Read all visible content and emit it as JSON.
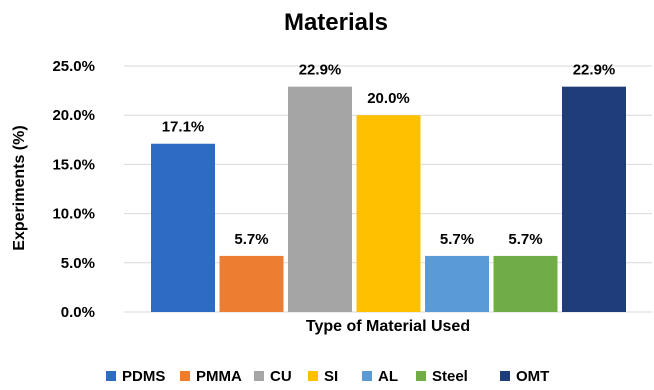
{
  "chart_data": {
    "type": "bar",
    "title": "Materials",
    "xlabel": "Type of Material Used",
    "ylabel": "Experiments (%)",
    "ylim": [
      0,
      25
    ],
    "yticks": [
      "0.0%",
      "5.0%",
      "10.0%",
      "15.0%",
      "20.0%",
      "25.0%"
    ],
    "grid": true,
    "legend_position": "bottom",
    "series": [
      {
        "name": "PDMS",
        "value": 17.1,
        "label": "17.1%",
        "color": "#2e6bc4"
      },
      {
        "name": "PMMA",
        "value": 5.7,
        "label": "5.7%",
        "color": "#ed7d31"
      },
      {
        "name": "CU",
        "value": 22.9,
        "label": "22.9%",
        "color": "#a5a5a5"
      },
      {
        "name": "SI",
        "value": 20.0,
        "label": "20.0%",
        "color": "#ffc000"
      },
      {
        "name": "AL",
        "value": 5.7,
        "label": "5.7%",
        "color": "#5b9bd5"
      },
      {
        "name": "Steel",
        "value": 5.7,
        "label": "5.7%",
        "color": "#70ad47"
      },
      {
        "name": "OMT",
        "value": 22.9,
        "label": "22.9%",
        "color": "#1f3d7a"
      }
    ]
  }
}
